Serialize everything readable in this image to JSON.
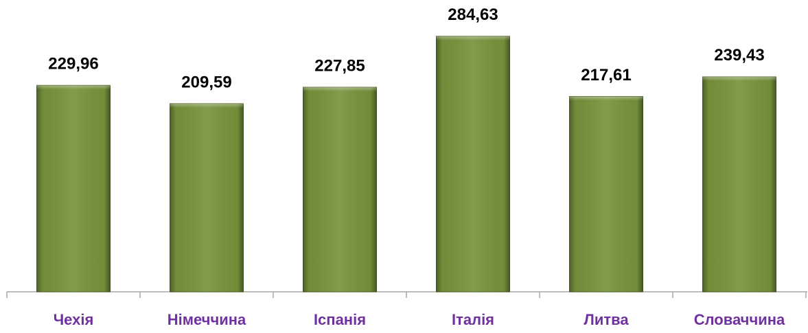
{
  "chart_data": {
    "type": "bar",
    "categories": [
      "Чехія",
      "Німеччина",
      "Іспанія",
      "Італія",
      "Литва",
      "Словаччина"
    ],
    "values": [
      229.96,
      209.59,
      227.85,
      284.63,
      217.61,
      239.43
    ],
    "value_labels": [
      "229,96",
      "209,59",
      "227,85",
      "284,63",
      "217,61",
      "239,43"
    ],
    "color": "#77933c",
    "ylim": [
      0,
      325
    ]
  }
}
